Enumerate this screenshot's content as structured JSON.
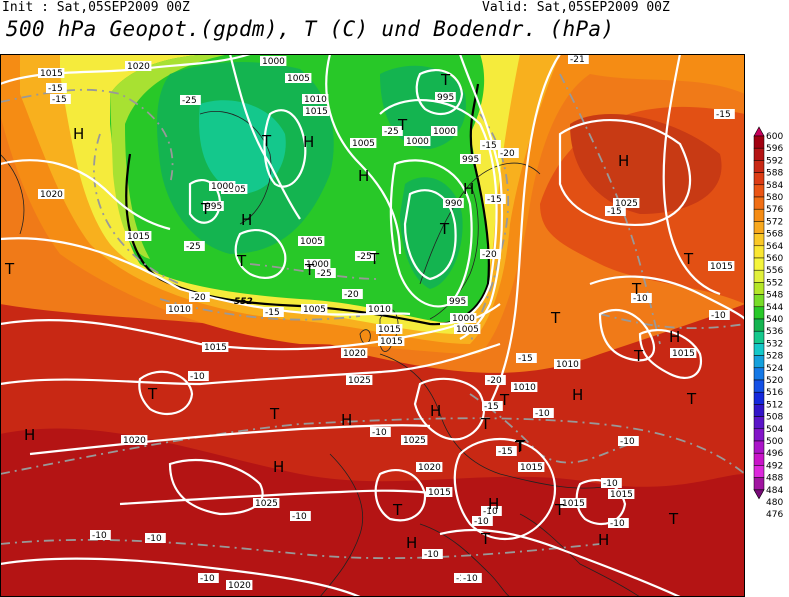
{
  "header": {
    "init": "Init : Sat,05SEP2009 00Z",
    "valid": "Valid: Sat,05SEP2009 00Z",
    "title": "500 hPa Geopot.(gpdm), T (C) und Bodendr. (hPa)"
  },
  "colorbar": {
    "ticks": [
      "600",
      "596",
      "592",
      "588",
      "584",
      "580",
      "576",
      "572",
      "568",
      "564",
      "560",
      "556",
      "552",
      "548",
      "544",
      "540",
      "536",
      "532",
      "528",
      "524",
      "520",
      "516",
      "512",
      "508",
      "504",
      "500",
      "496",
      "492",
      "488",
      "484",
      "480",
      "476"
    ],
    "colors": [
      "#c8005a",
      "#a00010",
      "#b41414",
      "#c82814",
      "#dc3c14",
      "#ea5514",
      "#f06e14",
      "#f58c14",
      "#f8a81e",
      "#fac828",
      "#fae632",
      "#f5f53c",
      "#e1f03c",
      "#b4e628",
      "#78dc28",
      "#28c828",
      "#14b450",
      "#14c88c",
      "#14c8c8",
      "#14a0dc",
      "#1478e6",
      "#1450e6",
      "#1428dc",
      "#3214c8",
      "#5a14c8",
      "#8214c8",
      "#aa14c8",
      "#c814c8",
      "#dc28dc",
      "#a014a0",
      "#780a78"
    ]
  },
  "map": {
    "pressure_labels": [
      {
        "text": "1015"
      },
      {
        "text": "1020"
      },
      {
        "text": "1000"
      },
      {
        "text": "1005"
      },
      {
        "text": "995"
      },
      {
        "text": "1010"
      },
      {
        "text": "1015"
      },
      {
        "text": "1005"
      },
      {
        "text": "1000"
      },
      {
        "text": "995"
      },
      {
        "text": "1000"
      },
      {
        "text": "1005"
      },
      {
        "text": "1020"
      },
      {
        "text": "1015"
      },
      {
        "text": "1000"
      },
      {
        "text": "995"
      },
      {
        "text": "1005"
      },
      {
        "text": "1000"
      },
      {
        "text": "990"
      },
      {
        "text": "1025"
      },
      {
        "text": "1015"
      },
      {
        "text": "1010"
      },
      {
        "text": "1005"
      },
      {
        "text": "995"
      },
      {
        "text": "1000"
      },
      {
        "text": "1005"
      },
      {
        "text": "1010"
      },
      {
        "text": "1015"
      },
      {
        "text": "1015"
      },
      {
        "text": "1020"
      },
      {
        "text": "1025"
      },
      {
        "text": "1010"
      },
      {
        "text": "1010"
      },
      {
        "text": "1015"
      },
      {
        "text": "1015"
      },
      {
        "text": "1020"
      },
      {
        "text": "1025"
      },
      {
        "text": "1020"
      },
      {
        "text": "1015"
      },
      {
        "text": "1025"
      },
      {
        "text": "1015"
      },
      {
        "text": "1015"
      },
      {
        "text": "1020"
      },
      {
        "text": "1015"
      }
    ],
    "temperature_labels": [
      {
        "text": "-15"
      },
      {
        "text": "-15"
      },
      {
        "text": "-25"
      },
      {
        "text": "-25"
      },
      {
        "text": "-20"
      },
      {
        "text": "-15"
      },
      {
        "text": "-20"
      },
      {
        "text": "-25"
      },
      {
        "text": "-25"
      },
      {
        "text": "-25"
      },
      {
        "text": "-20"
      },
      {
        "text": "-15"
      },
      {
        "text": "-20"
      },
      {
        "text": "-15"
      },
      {
        "text": "-15"
      },
      {
        "text": "-15"
      },
      {
        "text": "-21"
      },
      {
        "text": "-15"
      },
      {
        "text": "-10"
      },
      {
        "text": "-10"
      },
      {
        "text": "-15"
      },
      {
        "text": "-20"
      },
      {
        "text": "-15"
      },
      {
        "text": "-10"
      },
      {
        "text": "-10"
      },
      {
        "text": "-10"
      },
      {
        "text": "-10"
      },
      {
        "text": "-10"
      },
      {
        "text": "-10"
      },
      {
        "text": "-10"
      },
      {
        "text": "-10"
      },
      {
        "text": "-10"
      },
      {
        "text": "-10"
      },
      {
        "text": "-10"
      },
      {
        "text": "-10"
      },
      {
        "text": "-10"
      },
      {
        "text": "-10"
      },
      {
        "text": "-10"
      }
    ],
    "highs": [
      "H",
      "H",
      "H",
      "H",
      "H",
      "H",
      "H",
      "H",
      "H",
      "H",
      "H",
      "H",
      "H",
      "H",
      "H"
    ],
    "lows": [
      "T",
      "T",
      "T",
      "T",
      "T",
      "T",
      "T",
      "T",
      "T",
      "T",
      "T",
      "T",
      "T",
      "T",
      "T",
      "T",
      "T",
      "T",
      "T",
      "T",
      "T",
      "T",
      "T",
      "T"
    ],
    "contour_label_552": "552"
  }
}
